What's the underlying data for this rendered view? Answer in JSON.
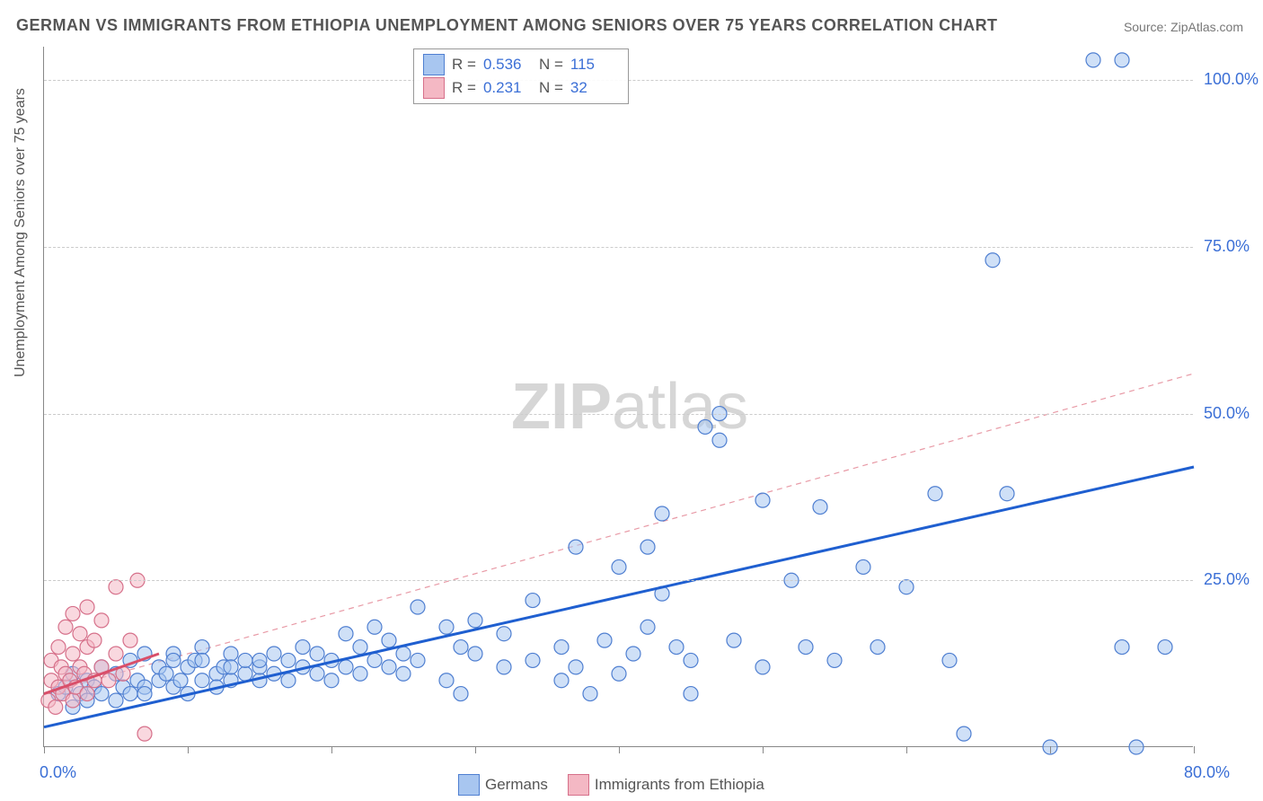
{
  "title": "GERMAN VS IMMIGRANTS FROM ETHIOPIA UNEMPLOYMENT AMONG SENIORS OVER 75 YEARS CORRELATION CHART",
  "source_label": "Source: ",
  "source_name": "ZipAtlas.com",
  "ylabel": "Unemployment Among Seniors over 75 years",
  "watermark_a": "ZIP",
  "watermark_b": "atlas",
  "chart": {
    "type": "scatter",
    "xlim": [
      0,
      80
    ],
    "ylim": [
      0,
      105
    ],
    "x_ticks": [
      0,
      10,
      20,
      30,
      40,
      50,
      60,
      70,
      80
    ],
    "x_tick_labels": {
      "0": "0.0%",
      "80": "80.0%"
    },
    "y_ticks": [
      25,
      50,
      75,
      100
    ],
    "y_tick_labels": {
      "25": "25.0%",
      "50": "50.0%",
      "75": "75.0%",
      "100": "100.0%"
    },
    "background_color": "#ffffff",
    "grid_color": "#cccccc",
    "axis_color": "#888888",
    "tick_label_color": "#3b6fd6",
    "marker_radius": 8,
    "marker_stroke_width": 1.2,
    "series": [
      {
        "name": "Germans",
        "fill": "#a8c6f0",
        "stroke": "#4f7fd1",
        "fill_opacity": 0.55,
        "trend": {
          "x0": 0,
          "y0": 3,
          "x1": 80,
          "y1": 42,
          "color": "#1f5fd0",
          "width": 3,
          "dash": "none"
        },
        "extrap": {
          "x0": 0,
          "y0": 8,
          "x1": 80,
          "y1": 56,
          "color": "#e89aa6",
          "width": 1.2,
          "dash": "6,5"
        },
        "R_label": "R =",
        "R": "0.536",
        "N_label": "N =",
        "N": "115",
        "points": [
          [
            1,
            8
          ],
          [
            1.5,
            9
          ],
          [
            2,
            6
          ],
          [
            2,
            11
          ],
          [
            2.5,
            8
          ],
          [
            3,
            7
          ],
          [
            3,
            10
          ],
          [
            3.5,
            9
          ],
          [
            4,
            8
          ],
          [
            4,
            12
          ],
          [
            5,
            7
          ],
          [
            5,
            11
          ],
          [
            5.5,
            9
          ],
          [
            6,
            8
          ],
          [
            6,
            13
          ],
          [
            6.5,
            10
          ],
          [
            7,
            9
          ],
          [
            7,
            8
          ],
          [
            8,
            10
          ],
          [
            8,
            12
          ],
          [
            8.5,
            11
          ],
          [
            9,
            9
          ],
          [
            9,
            14
          ],
          [
            9.5,
            10
          ],
          [
            10,
            8
          ],
          [
            10,
            12
          ],
          [
            10.5,
            13
          ],
          [
            11,
            10
          ],
          [
            11,
            15
          ],
          [
            12,
            11
          ],
          [
            12,
            9
          ],
          [
            12.5,
            12
          ],
          [
            13,
            10
          ],
          [
            13,
            14
          ],
          [
            14,
            11
          ],
          [
            14,
            13
          ],
          [
            15,
            10
          ],
          [
            15,
            12
          ],
          [
            16,
            11
          ],
          [
            16,
            14
          ],
          [
            17,
            10
          ],
          [
            17,
            13
          ],
          [
            18,
            12
          ],
          [
            18,
            15
          ],
          [
            19,
            11
          ],
          [
            19,
            14
          ],
          [
            20,
            10
          ],
          [
            20,
            13
          ],
          [
            21,
            12
          ],
          [
            21,
            17
          ],
          [
            22,
            11
          ],
          [
            22,
            15
          ],
          [
            23,
            13
          ],
          [
            23,
            18
          ],
          [
            24,
            12
          ],
          [
            24,
            16
          ],
          [
            25,
            14
          ],
          [
            25,
            11
          ],
          [
            26,
            13
          ],
          [
            26,
            21
          ],
          [
            28,
            10
          ],
          [
            28,
            18
          ],
          [
            29,
            15
          ],
          [
            29,
            8
          ],
          [
            30,
            14
          ],
          [
            30,
            19
          ],
          [
            32,
            12
          ],
          [
            32,
            17
          ],
          [
            34,
            13
          ],
          [
            34,
            22
          ],
          [
            36,
            10
          ],
          [
            36,
            15
          ],
          [
            37,
            30
          ],
          [
            37,
            12
          ],
          [
            38,
            8
          ],
          [
            39,
            16
          ],
          [
            40,
            27
          ],
          [
            40,
            11
          ],
          [
            41,
            14
          ],
          [
            42,
            18
          ],
          [
            42,
            30
          ],
          [
            43,
            35
          ],
          [
            43,
            23
          ],
          [
            44,
            15
          ],
          [
            45,
            13
          ],
          [
            45,
            8
          ],
          [
            46,
            48
          ],
          [
            47,
            46
          ],
          [
            47,
            50
          ],
          [
            48,
            16
          ],
          [
            50,
            37
          ],
          [
            50,
            12
          ],
          [
            52,
            25
          ],
          [
            53,
            15
          ],
          [
            54,
            36
          ],
          [
            55,
            13
          ],
          [
            57,
            27
          ],
          [
            58,
            15
          ],
          [
            60,
            24
          ],
          [
            62,
            38
          ],
          [
            63,
            13
          ],
          [
            64,
            2
          ],
          [
            66,
            73
          ],
          [
            67,
            38
          ],
          [
            70,
            0
          ],
          [
            73,
            103
          ],
          [
            75,
            103
          ],
          [
            75,
            15
          ],
          [
            76,
            0
          ],
          [
            78,
            15
          ],
          [
            7,
            14
          ],
          [
            9,
            13
          ],
          [
            11,
            13
          ],
          [
            13,
            12
          ],
          [
            15,
            13
          ]
        ]
      },
      {
        "name": "Immigrants from Ethiopia",
        "fill": "#f4b8c4",
        "stroke": "#d6708a",
        "fill_opacity": 0.55,
        "trend": {
          "x0": 0,
          "y0": 8,
          "x1": 8,
          "y1": 14,
          "color": "#d94f6a",
          "width": 3,
          "dash": "none"
        },
        "R_label": "R =",
        "R": "0.231",
        "N_label": "N =",
        "N": "32",
        "points": [
          [
            0.3,
            7
          ],
          [
            0.5,
            10
          ],
          [
            0.5,
            13
          ],
          [
            0.8,
            6
          ],
          [
            1,
            9
          ],
          [
            1,
            15
          ],
          [
            1.2,
            12
          ],
          [
            1.3,
            8
          ],
          [
            1.5,
            11
          ],
          [
            1.5,
            18
          ],
          [
            1.8,
            10
          ],
          [
            2,
            7
          ],
          [
            2,
            14
          ],
          [
            2,
            20
          ],
          [
            2.2,
            9
          ],
          [
            2.5,
            12
          ],
          [
            2.5,
            17
          ],
          [
            2.8,
            11
          ],
          [
            3,
            8
          ],
          [
            3,
            15
          ],
          [
            3,
            21
          ],
          [
            3.5,
            10
          ],
          [
            3.5,
            16
          ],
          [
            4,
            12
          ],
          [
            4,
            19
          ],
          [
            4.5,
            10
          ],
          [
            5,
            14
          ],
          [
            5,
            24
          ],
          [
            5.5,
            11
          ],
          [
            6,
            16
          ],
          [
            6.5,
            25
          ],
          [
            7,
            2
          ]
        ]
      }
    ]
  },
  "legend": {
    "series1_label": "Germans",
    "series2_label": "Immigrants from Ethiopia"
  }
}
